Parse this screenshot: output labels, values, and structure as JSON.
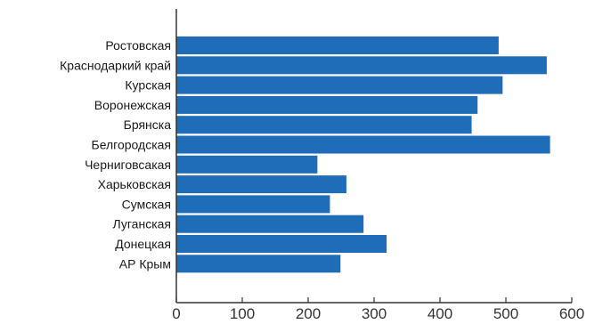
{
  "chart_data": {
    "type": "bar",
    "orientation": "horizontal",
    "title": "",
    "xlabel": "",
    "ylabel": "",
    "categories": [
      "Ростовская",
      "Краснодаркий край",
      "Курская",
      "Воронежская",
      "Брянска",
      "Белгородская",
      "Черниговсакая",
      "Харьковская",
      "Сумская",
      "Луганская",
      "Донецкая",
      "АР Крым"
    ],
    "values": [
      489,
      562,
      495,
      457,
      448,
      567,
      214,
      258,
      233,
      284,
      319,
      249
    ],
    "xlim": [
      0,
      600
    ],
    "xticks": [
      0,
      100,
      200,
      300,
      400,
      500,
      600
    ],
    "grid": false,
    "legend": "none",
    "bar_color": "#1f6cb8",
    "axis_color": "#333333"
  }
}
